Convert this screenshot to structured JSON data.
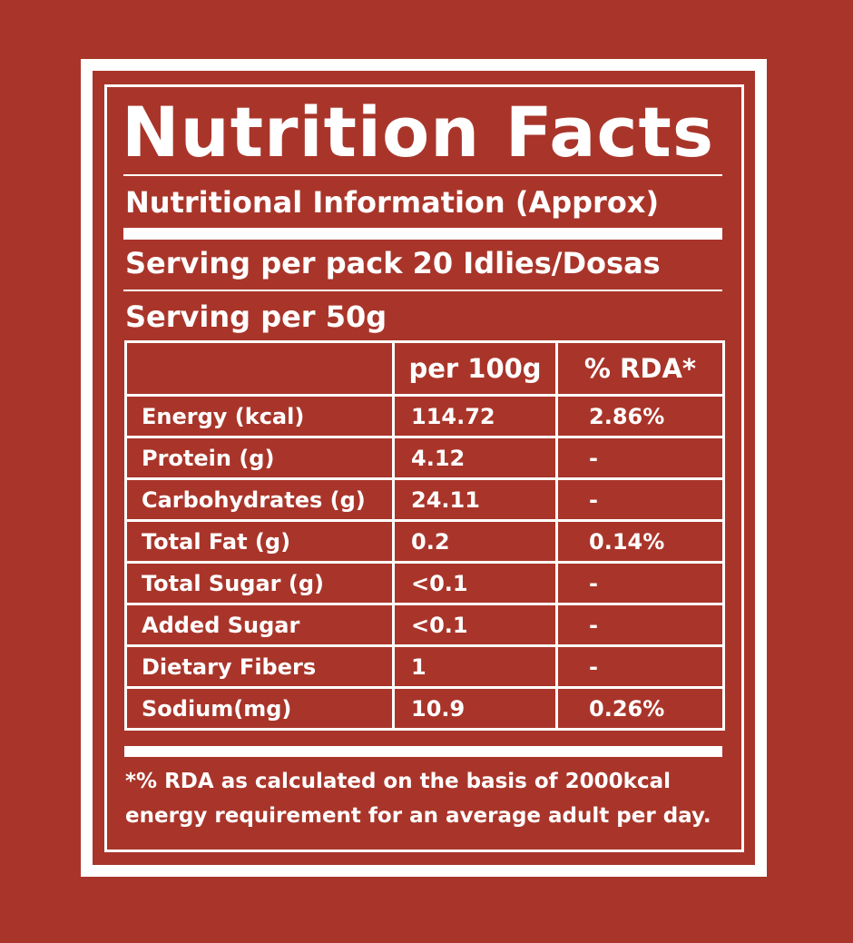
{
  "label": {
    "title": "Nutrition Facts",
    "subtitle": "Nutritional Information (Approx)",
    "serving_per_pack": "Serving per pack 20 Idlies/Dosas",
    "serving_size": "Serving per 50g",
    "table": {
      "headers": [
        "",
        "per 100g",
        "% RDA*"
      ],
      "rows": [
        {
          "nutrient": "Energy (kcal)",
          "per_100g": "114.72",
          "rda": "2.86%"
        },
        {
          "nutrient": "Protein (g)",
          "per_100g": "4.12",
          "rda": "-"
        },
        {
          "nutrient": "Carbohydrates (g)",
          "per_100g": "24.11",
          "rda": "-"
        },
        {
          "nutrient": "Total Fat (g)",
          "per_100g": "0.2",
          "rda": "0.14%"
        },
        {
          "nutrient": "Total Sugar (g)",
          "per_100g": "<0.1",
          "rda": "-"
        },
        {
          "nutrient": "Added Sugar",
          "per_100g": "<0.1",
          "rda": "-"
        },
        {
          "nutrient": "Dietary Fibers",
          "per_100g": "1",
          "rda": "-"
        },
        {
          "nutrient": "Sodium(mg)",
          "per_100g": "10.9",
          "rda": "0.26%"
        }
      ]
    },
    "footnote_line_1": "*% RDA as calculated on the basis of 2000kcal",
    "footnote_line_2": "energy requirement for an average adult per day."
  },
  "colors": {
    "background": "#a9352a",
    "foreground": "#ffffff"
  }
}
